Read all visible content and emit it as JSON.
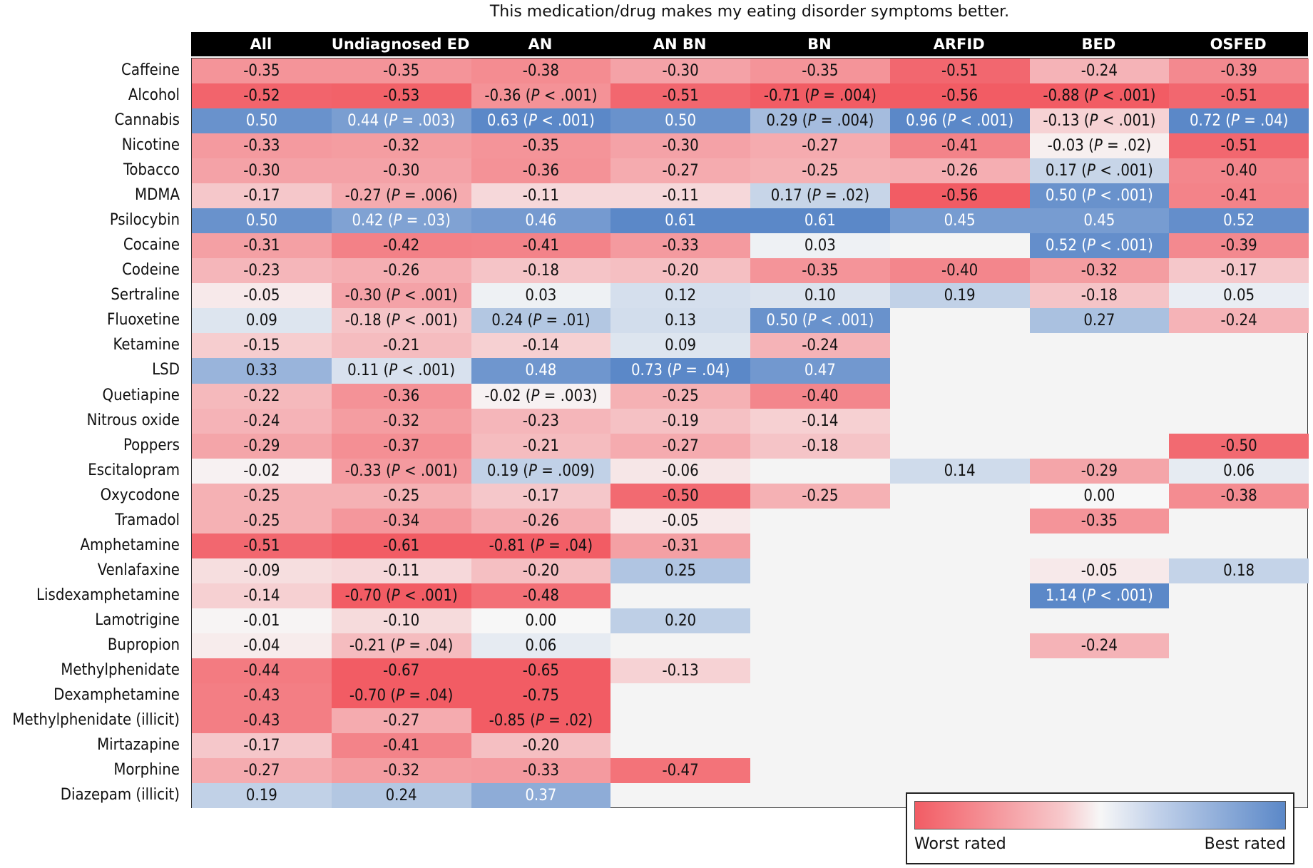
{
  "chart_data": {
    "type": "heatmap",
    "title": "This medication/drug makes my eating disorder symptoms better.",
    "columns": [
      "All",
      "Undiagnosed ED",
      "AN",
      "AN BN",
      "BN",
      "ARFID",
      "BED",
      "OSFED"
    ],
    "rows": [
      {
        "label": "Caffeine",
        "values": [
          -0.35,
          -0.35,
          -0.38,
          -0.3,
          -0.35,
          -0.51,
          -0.24,
          -0.39
        ],
        "p": [
          null,
          null,
          null,
          null,
          null,
          null,
          null,
          null
        ]
      },
      {
        "label": "Alcohol",
        "values": [
          -0.52,
          -0.53,
          -0.36,
          -0.51,
          -0.71,
          -0.56,
          -0.88,
          -0.51
        ],
        "p": [
          null,
          null,
          "<.001",
          null,
          "=.004",
          null,
          "<.001",
          null
        ]
      },
      {
        "label": "Cannabis",
        "values": [
          0.5,
          0.44,
          0.63,
          0.5,
          0.29,
          0.96,
          -0.13,
          0.72
        ],
        "p": [
          null,
          "=.003",
          "<.001",
          null,
          "=.004",
          "<.001",
          "<.001",
          "=.04"
        ]
      },
      {
        "label": "Nicotine",
        "values": [
          -0.33,
          -0.32,
          -0.35,
          -0.3,
          -0.27,
          -0.41,
          -0.03,
          -0.51
        ],
        "p": [
          null,
          null,
          null,
          null,
          null,
          null,
          "=.02",
          null
        ]
      },
      {
        "label": "Tobacco",
        "values": [
          -0.3,
          -0.3,
          -0.36,
          -0.27,
          -0.25,
          -0.26,
          0.17,
          -0.4
        ],
        "p": [
          null,
          null,
          null,
          null,
          null,
          null,
          "<.001",
          null
        ]
      },
      {
        "label": "MDMA",
        "values": [
          -0.17,
          -0.27,
          -0.11,
          -0.11,
          0.17,
          -0.56,
          0.5,
          -0.41
        ],
        "p": [
          null,
          "=.006",
          null,
          null,
          "=.02",
          null,
          "<.001",
          null
        ]
      },
      {
        "label": "Psilocybin",
        "values": [
          0.5,
          0.42,
          0.46,
          0.61,
          0.61,
          0.45,
          0.45,
          0.52
        ],
        "p": [
          null,
          "=.03",
          null,
          null,
          null,
          null,
          null,
          null
        ]
      },
      {
        "label": "Cocaine",
        "values": [
          -0.31,
          -0.42,
          -0.41,
          -0.33,
          0.03,
          null,
          0.52,
          -0.39
        ],
        "p": [
          null,
          null,
          null,
          null,
          null,
          null,
          "<.001",
          null
        ]
      },
      {
        "label": "Codeine",
        "values": [
          -0.23,
          -0.26,
          -0.18,
          -0.2,
          -0.35,
          -0.4,
          -0.32,
          -0.17
        ],
        "p": [
          null,
          null,
          null,
          null,
          null,
          null,
          null,
          null
        ]
      },
      {
        "label": "Sertraline",
        "values": [
          -0.05,
          -0.3,
          0.03,
          0.12,
          0.1,
          0.19,
          -0.18,
          0.05
        ],
        "p": [
          null,
          "<.001",
          null,
          null,
          null,
          null,
          null,
          null
        ]
      },
      {
        "label": "Fluoxetine",
        "values": [
          0.09,
          -0.18,
          0.24,
          0.13,
          0.5,
          null,
          0.27,
          -0.24
        ],
        "p": [
          null,
          "<.001",
          "=.01",
          null,
          "<.001",
          null,
          null,
          null
        ]
      },
      {
        "label": "Ketamine",
        "values": [
          -0.15,
          -0.21,
          -0.14,
          0.09,
          -0.24,
          null,
          null,
          null
        ],
        "p": [
          null,
          null,
          null,
          null,
          null,
          null,
          null,
          null
        ]
      },
      {
        "label": "LSD",
        "values": [
          0.33,
          0.11,
          0.48,
          0.73,
          0.47,
          null,
          null,
          null
        ],
        "p": [
          null,
          "<.001",
          null,
          "=.04",
          null,
          null,
          null,
          null
        ]
      },
      {
        "label": "Quetiapine",
        "values": [
          -0.22,
          -0.36,
          -0.02,
          -0.25,
          -0.4,
          null,
          null,
          null
        ],
        "p": [
          null,
          null,
          "=.003",
          null,
          null,
          null,
          null,
          null
        ]
      },
      {
        "label": "Nitrous oxide",
        "values": [
          -0.24,
          -0.32,
          -0.23,
          -0.19,
          -0.14,
          null,
          null,
          null
        ],
        "p": [
          null,
          null,
          null,
          null,
          null,
          null,
          null,
          null
        ]
      },
      {
        "label": "Poppers",
        "values": [
          -0.29,
          -0.37,
          -0.21,
          -0.27,
          -0.18,
          null,
          null,
          -0.5
        ],
        "p": [
          null,
          null,
          null,
          null,
          null,
          null,
          null,
          null
        ]
      },
      {
        "label": "Escitalopram",
        "values": [
          -0.02,
          -0.33,
          0.19,
          -0.06,
          null,
          0.14,
          -0.29,
          0.06
        ],
        "p": [
          null,
          "<.001",
          "=.009",
          null,
          null,
          null,
          null,
          null
        ]
      },
      {
        "label": "Oxycodone",
        "values": [
          -0.25,
          -0.25,
          -0.17,
          -0.5,
          -0.25,
          null,
          0.0,
          -0.38
        ],
        "p": [
          null,
          null,
          null,
          null,
          null,
          null,
          null,
          null
        ]
      },
      {
        "label": "Tramadol",
        "values": [
          -0.25,
          -0.34,
          -0.26,
          -0.05,
          null,
          null,
          -0.35,
          null
        ],
        "p": [
          null,
          null,
          null,
          null,
          null,
          null,
          null,
          null
        ]
      },
      {
        "label": "Amphetamine",
        "values": [
          -0.51,
          -0.61,
          -0.81,
          -0.31,
          null,
          null,
          null,
          null
        ],
        "p": [
          null,
          null,
          "=.04",
          null,
          null,
          null,
          null,
          null
        ]
      },
      {
        "label": "Venlafaxine",
        "values": [
          -0.09,
          -0.11,
          -0.2,
          0.25,
          null,
          null,
          -0.05,
          0.18
        ],
        "p": [
          null,
          null,
          null,
          null,
          null,
          null,
          null,
          null
        ]
      },
      {
        "label": "Lisdexamphetamine",
        "values": [
          -0.14,
          -0.7,
          -0.48,
          null,
          null,
          null,
          1.14,
          null
        ],
        "p": [
          null,
          "<.001",
          null,
          null,
          null,
          null,
          "<.001",
          null
        ]
      },
      {
        "label": "Lamotrigine",
        "values": [
          -0.01,
          -0.1,
          0.0,
          0.2,
          null,
          null,
          null,
          null
        ],
        "p": [
          null,
          null,
          null,
          null,
          null,
          null,
          null,
          null
        ]
      },
      {
        "label": "Bupropion",
        "values": [
          -0.04,
          -0.21,
          0.06,
          null,
          null,
          null,
          -0.24,
          null
        ],
        "p": [
          null,
          "=.04",
          null,
          null,
          null,
          null,
          null,
          null
        ]
      },
      {
        "label": "Methylphenidate",
        "values": [
          -0.44,
          -0.67,
          -0.65,
          -0.13,
          null,
          null,
          null,
          null
        ],
        "p": [
          null,
          null,
          null,
          null,
          null,
          null,
          null,
          null
        ]
      },
      {
        "label": "Dexamphetamine",
        "values": [
          -0.43,
          -0.7,
          -0.75,
          null,
          null,
          null,
          null,
          null
        ],
        "p": [
          null,
          "=.04",
          null,
          null,
          null,
          null,
          null,
          null
        ]
      },
      {
        "label": "Methylphenidate (illicit)",
        "values": [
          -0.43,
          -0.27,
          -0.85,
          null,
          null,
          null,
          null,
          null
        ],
        "p": [
          null,
          null,
          "=.02",
          null,
          null,
          null,
          null,
          null
        ]
      },
      {
        "label": "Mirtazapine",
        "values": [
          -0.17,
          -0.41,
          -0.2,
          null,
          null,
          null,
          null,
          null
        ],
        "p": [
          null,
          null,
          null,
          null,
          null,
          null,
          null,
          null
        ]
      },
      {
        "label": "Morphine",
        "values": [
          -0.27,
          -0.32,
          -0.33,
          -0.47,
          null,
          null,
          null,
          null
        ],
        "p": [
          null,
          null,
          null,
          null,
          null,
          null,
          null,
          null
        ]
      },
      {
        "label": "Diazepam (illicit)",
        "values": [
          0.19,
          0.24,
          0.37,
          null,
          null,
          null,
          null,
          null
        ],
        "p": [
          null,
          null,
          null,
          null,
          null,
          null,
          null,
          null
        ]
      }
    ],
    "color_scale": {
      "negative": "#f25c64",
      "neutral": "#f7f7f7",
      "positive": "#5b88c8",
      "missing": "#f4f4f4"
    },
    "legend": {
      "position": "bottom-right",
      "low_label": "Worst rated",
      "high_label": "Best rated"
    }
  }
}
